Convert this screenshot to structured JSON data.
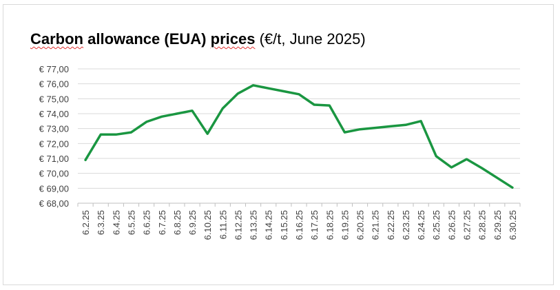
{
  "chart_data": {
    "type": "line",
    "title_bold_1": "Carbon",
    "title_bold_2": "allowance (EUA)",
    "title_bold_3": "prices",
    "title_rest": " (€/t, June 2025)",
    "xlabel": "",
    "ylabel": "",
    "ylim": [
      68,
      77
    ],
    "y_ticks": [
      "€ 68,00",
      "€ 69,00",
      "€ 70,00",
      "€ 71,00",
      "€ 72,00",
      "€ 73,00",
      "€ 74,00",
      "€ 75,00",
      "€ 76,00",
      "€ 77,00"
    ],
    "grid": true,
    "line_color": "#1a9641",
    "categories": [
      "6.2.25",
      "6.3.25",
      "6.4.25",
      "6.5.25",
      "6.6.25",
      "6.7.25",
      "6.8.25",
      "6.9.25",
      "6.10.25",
      "6.11.25",
      "6.12.25",
      "6.13.25",
      "6.14.25",
      "6.15.25",
      "6.16.25",
      "6.17.25",
      "6.18.25",
      "6.19.25",
      "6.20.25",
      "6.21.25",
      "6.22.25",
      "6.23.25",
      "6.24.25",
      "6.25.25",
      "6.26.25",
      "6.27.25",
      "6.28.25",
      "6.29.25",
      "6.30.25"
    ],
    "series": [
      {
        "values": [
          70.9,
          72.6,
          72.6,
          72.75,
          73.45,
          73.8,
          74.0,
          74.2,
          72.65,
          74.35,
          75.35,
          75.9,
          75.7,
          75.5,
          75.3,
          74.6,
          74.55,
          72.75,
          72.95,
          73.05,
          73.15,
          73.25,
          73.5,
          71.15,
          70.4,
          70.95,
          70.35,
          69.7,
          69.05
        ]
      }
    ]
  }
}
